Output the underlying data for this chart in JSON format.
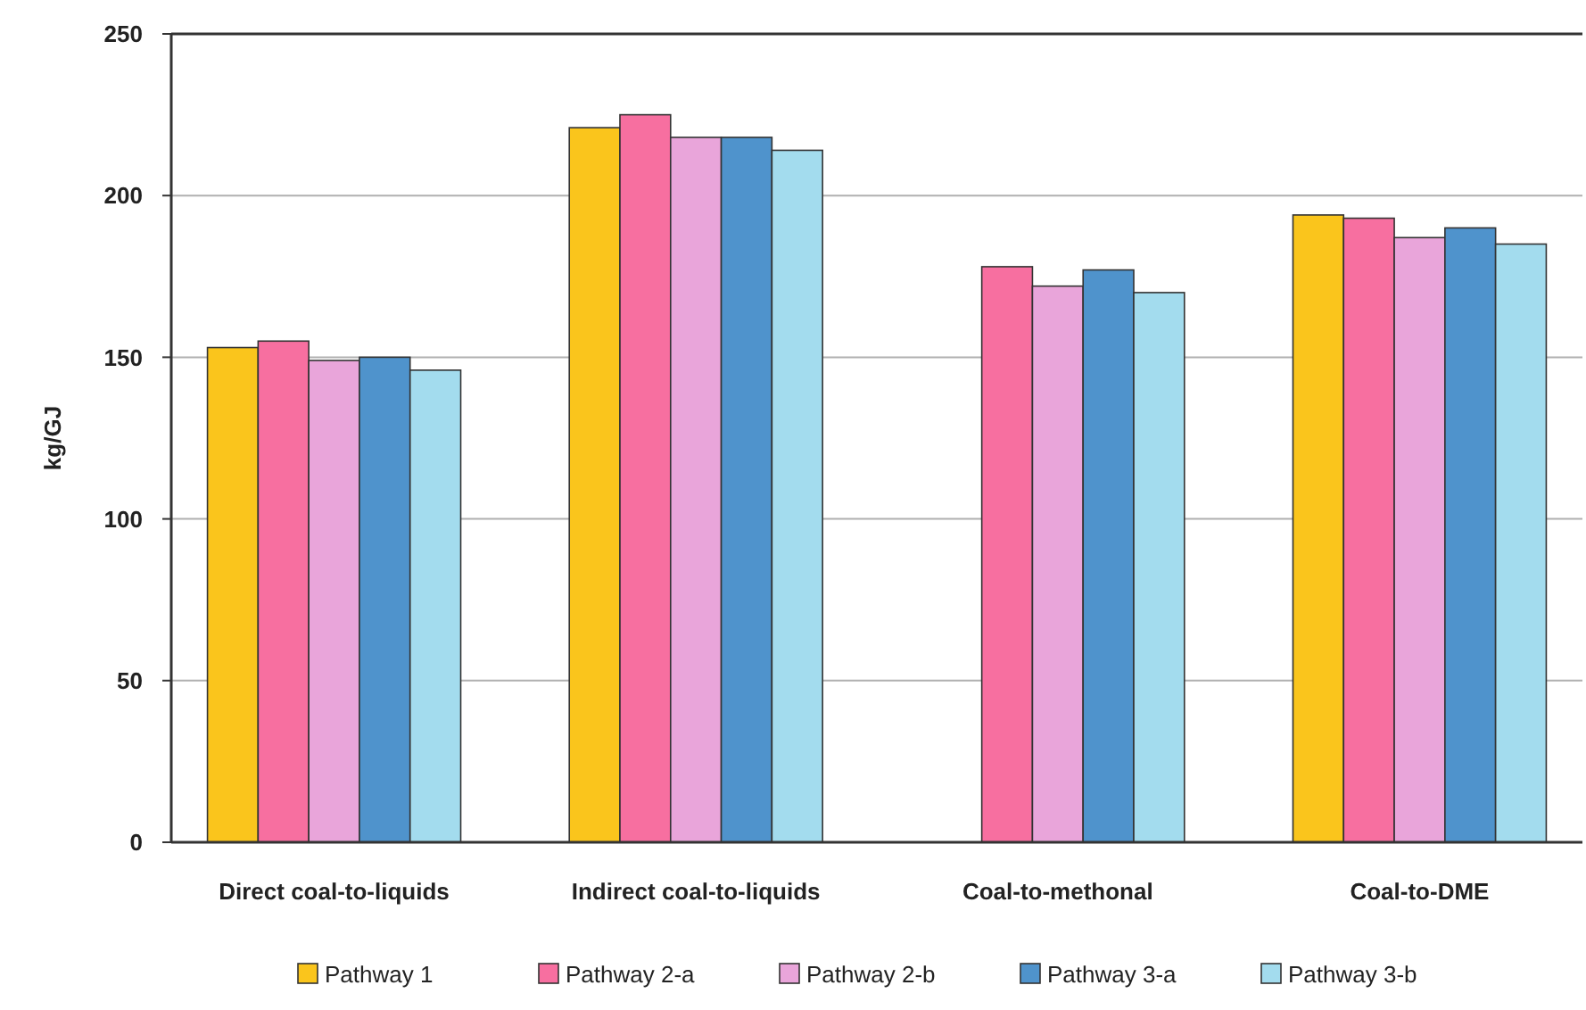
{
  "chart_data": {
    "type": "bar",
    "ylabel": "kg/GJ",
    "categories": [
      "Direct coal-to-liquids",
      "Indirect coal-to-liquids",
      "Coal-to-methonal",
      "Coal-to-DME"
    ],
    "series": [
      {
        "name": "Pathway 1",
        "color": "#fac51c",
        "values": [
          153,
          221,
          null,
          194
        ]
      },
      {
        "name": "Pathway 2-a",
        "color": "#f76fa0",
        "values": [
          155,
          225,
          178,
          193
        ]
      },
      {
        "name": "Pathway 2-b",
        "color": "#e9a5da",
        "values": [
          149,
          218,
          172,
          187
        ]
      },
      {
        "name": "Pathway 3-a",
        "color": "#4f93cc",
        "values": [
          150,
          218,
          177,
          190
        ]
      },
      {
        "name": "Pathway 3-b",
        "color": "#a3dcee",
        "values": [
          146,
          214,
          170,
          185
        ]
      }
    ],
    "ylim": [
      0,
      250
    ],
    "yticks": [
      0,
      50,
      100,
      150,
      200,
      250
    ],
    "grid": "y",
    "legend": "bottom"
  }
}
